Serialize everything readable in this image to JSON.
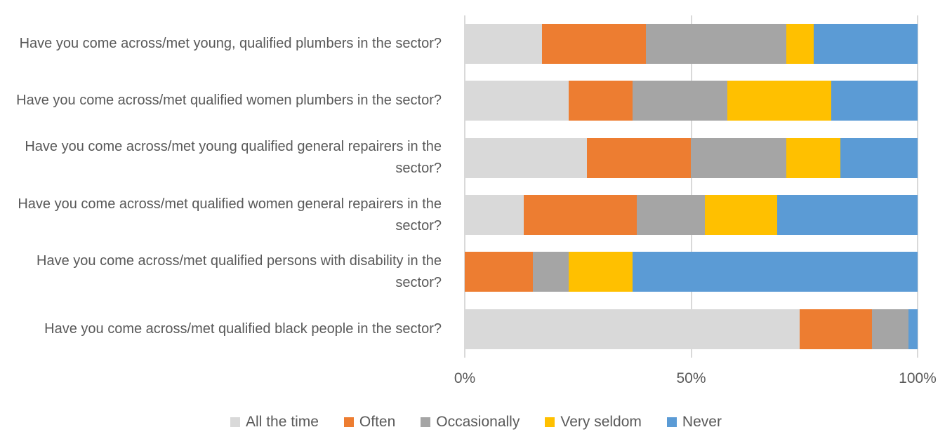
{
  "chart_data": {
    "type": "bar",
    "orientation": "horizontal",
    "stacked": true,
    "title": "",
    "xlabel": "",
    "ylabel": "",
    "grid": true,
    "gridline_color": "#D9D9D9",
    "text_color": "#595959",
    "background_color": "#FFFFFF",
    "legend_position": "bottom",
    "categories": [
      "Have you come across/met young, qualified plumbers in the sector?",
      "Have you come across/met qualified women plumbers in the sector?",
      "Have you come across/met young qualified general repairers in the sector?",
      "Have you come across/met qualified women general repairers in the sector?",
      "Have you come across/met qualified persons with disability in the sector?",
      "Have you come across/met qualified black people in the sector?"
    ],
    "series": [
      {
        "name": "All the time",
        "color": "#D9D9D9",
        "values": [
          17,
          23,
          27,
          13,
          0,
          74
        ]
      },
      {
        "name": "Often",
        "color": "#ED7D31",
        "values": [
          23,
          14,
          23,
          25,
          15,
          16
        ]
      },
      {
        "name": "Occasionally",
        "color": "#A5A5A5",
        "values": [
          31,
          21,
          21,
          15,
          8,
          8
        ]
      },
      {
        "name": "Very seldom",
        "color": "#FFC000",
        "values": [
          6,
          23,
          12,
          16,
          14,
          0
        ]
      },
      {
        "name": "Never",
        "color": "#5B9BD5",
        "values": [
          23,
          19,
          17,
          31,
          63,
          2
        ]
      }
    ],
    "x_axis": {
      "range": [
        0,
        100
      ],
      "unit": "%",
      "ticks": [
        {
          "label": "0%",
          "value": 0
        },
        {
          "label": "50%",
          "value": 50
        },
        {
          "label": "100%",
          "value": 100
        }
      ]
    }
  }
}
